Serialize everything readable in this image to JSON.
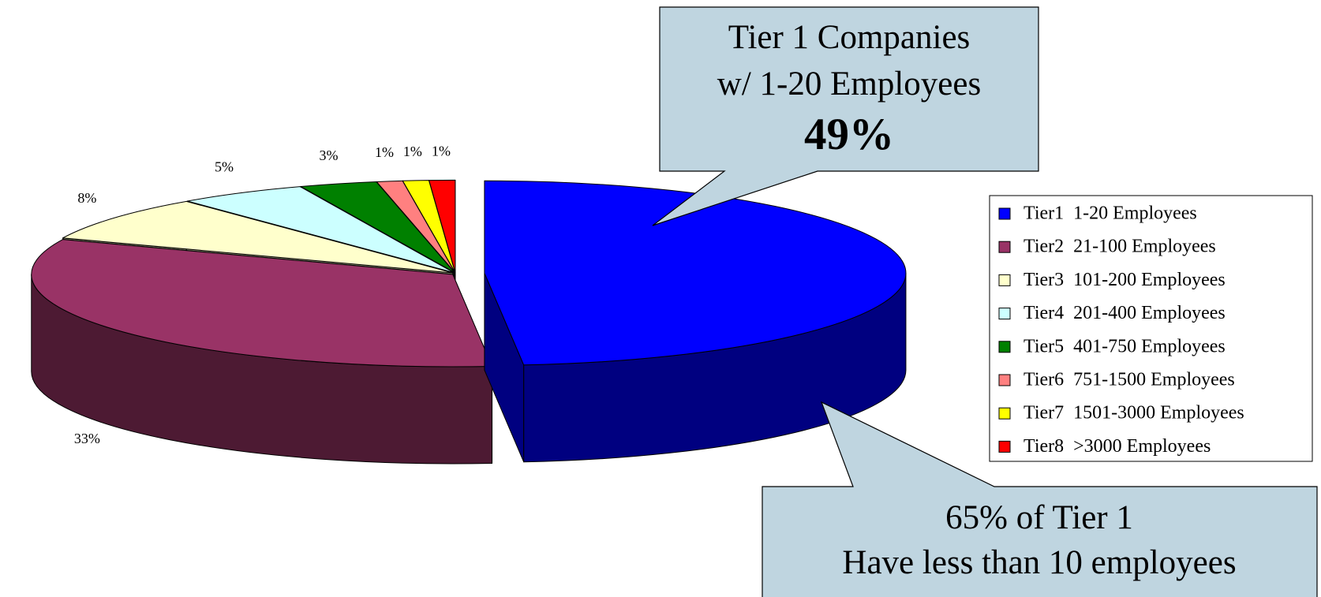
{
  "chart_data": {
    "type": "pie3d",
    "categories": [
      "Tier1  1-20 Employees",
      "Tier2  21-100 Employees",
      "Tier3  101-200 Employees",
      "Tier4  201-400 Employees",
      "Tier5  401-750 Employees",
      "Tier6  751-1500 Employees",
      "Tier7  1501-3000 Employees",
      "Tier8  >3000 Employees"
    ],
    "values": [
      49,
      33,
      8,
      5,
      3,
      1,
      1,
      1
    ],
    "value_labels": [
      null,
      "33%",
      "8%",
      "5%",
      "3%",
      "1%",
      "1%",
      "1%"
    ],
    "colors": [
      "#0000ff",
      "#993366",
      "#ffffcc",
      "#ccffff",
      "#008000",
      "#ff8080",
      "#ffff00",
      "#ff0000"
    ],
    "legend": "right",
    "annotations": [
      {
        "lines": [
          "Tier 1 Companies",
          "w/ 1-20 Employees",
          "49%"
        ]
      },
      {
        "lines": [
          "65% of Tier 1",
          "Have less than 10 employees"
        ]
      }
    ]
  }
}
